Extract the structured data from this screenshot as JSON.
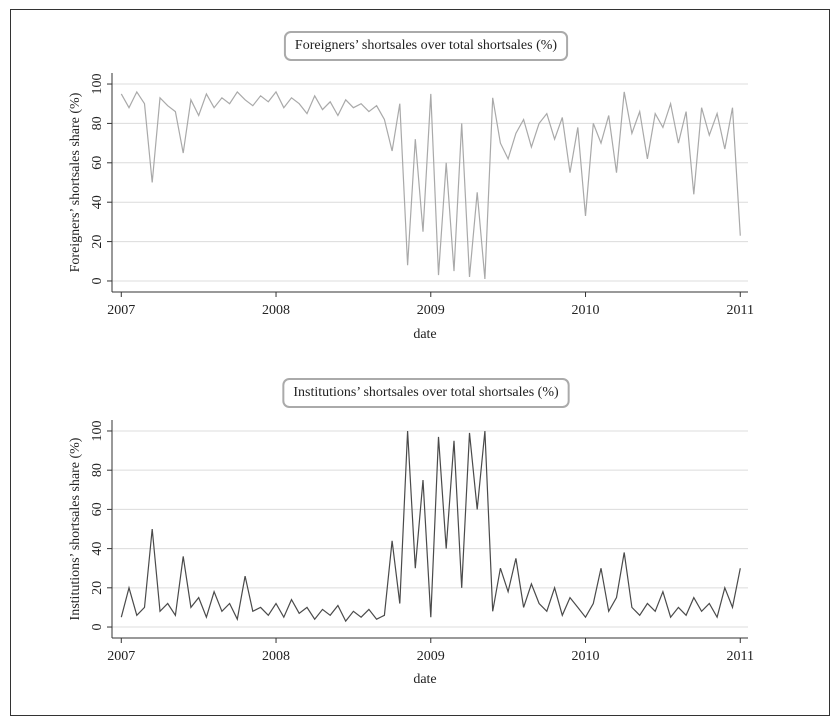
{
  "chart_data": [
    {
      "type": "line",
      "title": "Foreigners’ shortsales over total shortsales (%)",
      "xlabel": "date",
      "ylabel": "Foreigners’ shortsales share (%)",
      "color": "#a9a9a9",
      "x": [
        2007.0,
        2007.05,
        2007.1,
        2007.15,
        2007.2,
        2007.25,
        2007.3,
        2007.35,
        2007.4,
        2007.45,
        2007.5,
        2007.55,
        2007.6,
        2007.65,
        2007.7,
        2007.75,
        2007.8,
        2007.85,
        2007.9,
        2007.95,
        2008.0,
        2008.05,
        2008.1,
        2008.15,
        2008.2,
        2008.25,
        2008.3,
        2008.35,
        2008.4,
        2008.45,
        2008.5,
        2008.55,
        2008.6,
        2008.65,
        2008.7,
        2008.75,
        2008.8,
        2008.85,
        2008.9,
        2008.95,
        2009.0,
        2009.05,
        2009.1,
        2009.15,
        2009.2,
        2009.25,
        2009.3,
        2009.35,
        2009.4,
        2009.45,
        2009.5,
        2009.55,
        2009.6,
        2009.65,
        2009.7,
        2009.75,
        2009.8,
        2009.85,
        2009.9,
        2009.95,
        2010.0,
        2010.05,
        2010.1,
        2010.15,
        2010.2,
        2010.25,
        2010.3,
        2010.35,
        2010.4,
        2010.45,
        2010.5,
        2010.55,
        2010.6,
        2010.65,
        2010.7,
        2010.75,
        2010.8,
        2010.85,
        2010.9,
        2010.95,
        2011.0
      ],
      "values": [
        95,
        88,
        96,
        90,
        50,
        93,
        89,
        86,
        65,
        92,
        84,
        95,
        88,
        93,
        90,
        96,
        92,
        89,
        94,
        91,
        96,
        88,
        93,
        90,
        85,
        94,
        87,
        91,
        84,
        92,
        88,
        90,
        86,
        89,
        82,
        66,
        90,
        8,
        72,
        25,
        95,
        3,
        60,
        5,
        80,
        2,
        45,
        1,
        93,
        70,
        62,
        75,
        82,
        68,
        80,
        85,
        72,
        83,
        55,
        78,
        33,
        80,
        70,
        84,
        55,
        96,
        75,
        86,
        62,
        85,
        78,
        90,
        70,
        86,
        44,
        88,
        74,
        85,
        67,
        88,
        23
      ],
      "xlim": [
        2006.94,
        2011.05
      ],
      "xticks": [
        2007,
        2008,
        2009,
        2010,
        2011
      ],
      "ylim": [
        -5.6,
        105.6
      ],
      "yticks": [
        0,
        20,
        40,
        60,
        80,
        100
      ],
      "grid": true
    },
    {
      "type": "line",
      "title": "Institutions’ shortsales over total shortsales (%)",
      "xlabel": "date",
      "ylabel": "Institutions’ shortsales share (%)",
      "color": "#4a4a4a",
      "x": [
        2007.0,
        2007.05,
        2007.1,
        2007.15,
        2007.2,
        2007.25,
        2007.3,
        2007.35,
        2007.4,
        2007.45,
        2007.5,
        2007.55,
        2007.6,
        2007.65,
        2007.7,
        2007.75,
        2007.8,
        2007.85,
        2007.9,
        2007.95,
        2008.0,
        2008.05,
        2008.1,
        2008.15,
        2008.2,
        2008.25,
        2008.3,
        2008.35,
        2008.4,
        2008.45,
        2008.5,
        2008.55,
        2008.6,
        2008.65,
        2008.7,
        2008.75,
        2008.8,
        2008.85,
        2008.9,
        2008.95,
        2009.0,
        2009.05,
        2009.1,
        2009.15,
        2009.2,
        2009.25,
        2009.3,
        2009.35,
        2009.4,
        2009.45,
        2009.5,
        2009.55,
        2009.6,
        2009.65,
        2009.7,
        2009.75,
        2009.8,
        2009.85,
        2009.9,
        2009.95,
        2010.0,
        2010.05,
        2010.1,
        2010.15,
        2010.2,
        2010.25,
        2010.3,
        2010.35,
        2010.4,
        2010.45,
        2010.5,
        2010.55,
        2010.6,
        2010.65,
        2010.7,
        2010.75,
        2010.8,
        2010.85,
        2010.9,
        2010.95,
        2011.0
      ],
      "values": [
        5,
        20,
        6,
        10,
        50,
        8,
        12,
        6,
        36,
        10,
        15,
        5,
        18,
        8,
        12,
        4,
        26,
        8,
        10,
        6,
        12,
        5,
        14,
        7,
        10,
        4,
        9,
        6,
        11,
        3,
        8,
        5,
        9,
        4,
        6,
        44,
        12,
        100,
        30,
        75,
        5,
        97,
        40,
        95,
        20,
        99,
        60,
        100,
        8,
        30,
        18,
        35,
        10,
        22,
        12,
        8,
        20,
        6,
        15,
        10,
        5,
        12,
        30,
        8,
        15,
        38,
        10,
        6,
        12,
        8,
        18,
        5,
        10,
        6,
        15,
        8,
        12,
        5,
        20,
        10,
        30
      ],
      "xlim": [
        2006.94,
        2011.05
      ],
      "xticks": [
        2007,
        2008,
        2009,
        2010,
        2011
      ],
      "ylim": [
        -5.6,
        105.6
      ],
      "yticks": [
        0,
        20,
        40,
        60,
        80,
        100
      ],
      "grid": true
    }
  ]
}
